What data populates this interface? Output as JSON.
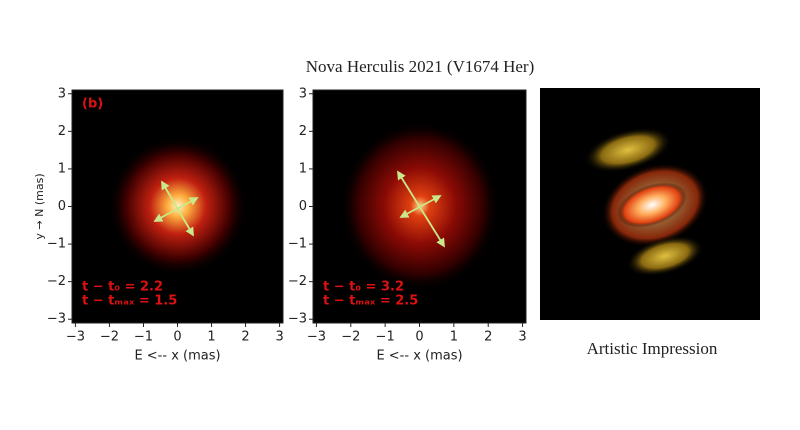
{
  "figure_title": "Nova Herculis 2021 (V1674 Her)",
  "chart_data": [
    {
      "type": "image",
      "panel_label": "(b)",
      "annotations": [
        "t − t₀ = 2.2",
        "t − tₘₐₓ = 1.5"
      ],
      "xlabel": "E <-- x (mas)",
      "ylabel": "y → N (mas)",
      "xlim": [
        -3.1,
        3.1
      ],
      "ylim": [
        -3.1,
        3.1
      ],
      "xticks": [
        {
          "value": -3,
          "label": "−3"
        },
        {
          "value": -2,
          "label": "−2"
        },
        {
          "value": -1,
          "label": "−1"
        },
        0,
        1,
        2,
        3
      ],
      "yticks": [
        {
          "value": -3,
          "label": "−3"
        },
        {
          "value": -2,
          "label": "−2"
        },
        {
          "value": -1,
          "label": "−1"
        },
        0,
        1,
        2,
        3
      ]
    },
    {
      "type": "image",
      "annotations": [
        "t − t₀ = 3.2",
        "t − tₘₐₓ = 2.5"
      ],
      "xlabel": "E <-- x (mas)",
      "xlim": [
        -3.1,
        3.1
      ],
      "ylim": [
        -3.1,
        3.1
      ],
      "xticks": [
        {
          "value": -3,
          "label": "−3"
        },
        {
          "value": -2,
          "label": "−2"
        },
        {
          "value": -1,
          "label": "−1"
        },
        0,
        1,
        2,
        3
      ],
      "yticks": [
        {
          "value": -3,
          "label": "−3"
        },
        {
          "value": -2,
          "label": "−2"
        },
        {
          "value": -1,
          "label": "−1"
        },
        0,
        1,
        2,
        3
      ]
    }
  ],
  "artwork": {
    "caption": "Artistic Impression"
  }
}
